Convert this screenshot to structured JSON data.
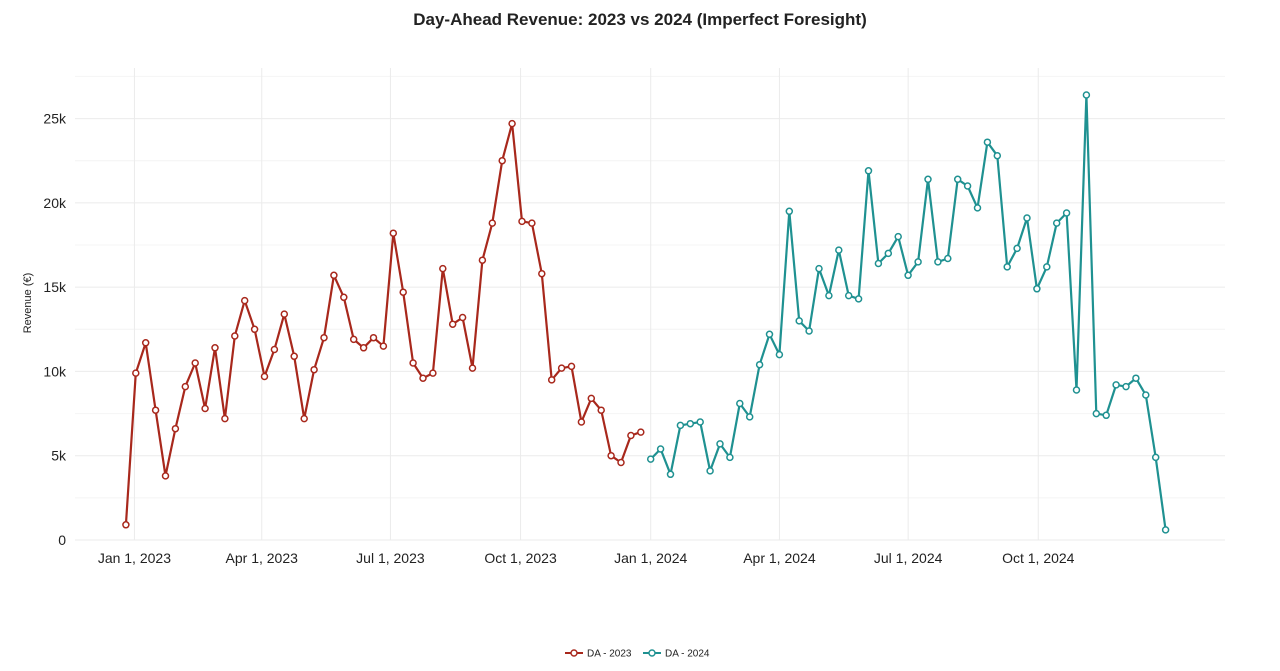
{
  "chart_data": {
    "type": "line",
    "title": "Day-Ahead Revenue: 2023 vs 2024 (Imperfect Foresight)",
    "ylabel": "Revenue (€)",
    "xlabel": "",
    "ylim": [
      0,
      28000
    ],
    "y_ticks": [
      {
        "value": 0,
        "label": "0"
      },
      {
        "value": 5000,
        "label": "5k"
      },
      {
        "value": 10000,
        "label": "10k"
      },
      {
        "value": 15000,
        "label": "15k"
      },
      {
        "value": 20000,
        "label": "20k"
      },
      {
        "value": 25000,
        "label": "25k"
      }
    ],
    "xlim": [
      "2022-11-20",
      "2025-02-10"
    ],
    "x_ticks": [
      {
        "value": "2023-01-01",
        "label": "Jan 1, 2023"
      },
      {
        "value": "2023-04-01",
        "label": "Apr 1, 2023"
      },
      {
        "value": "2023-07-01",
        "label": "Jul 1, 2023"
      },
      {
        "value": "2023-10-01",
        "label": "Oct 1, 2023"
      },
      {
        "value": "2024-01-01",
        "label": "Jan 1, 2024"
      },
      {
        "value": "2024-04-01",
        "label": "Apr 1, 2024"
      },
      {
        "value": "2024-07-01",
        "label": "Jul 1, 2024"
      },
      {
        "value": "2024-10-01",
        "label": "Oct 1, 2024"
      }
    ],
    "grid": true,
    "legend": "bottom-center",
    "series": [
      {
        "name": "DA - 2023",
        "color": "#a8281c",
        "x": [
          "2022-12-26",
          "2023-01-02",
          "2023-01-09",
          "2023-01-16",
          "2023-01-23",
          "2023-01-30",
          "2023-02-06",
          "2023-02-13",
          "2023-02-20",
          "2023-02-27",
          "2023-03-06",
          "2023-03-13",
          "2023-03-20",
          "2023-03-27",
          "2023-04-03",
          "2023-04-10",
          "2023-04-17",
          "2023-04-24",
          "2023-05-01",
          "2023-05-08",
          "2023-05-15",
          "2023-05-22",
          "2023-05-29",
          "2023-06-05",
          "2023-06-12",
          "2023-06-19",
          "2023-06-26",
          "2023-07-03",
          "2023-07-10",
          "2023-07-17",
          "2023-07-24",
          "2023-07-31",
          "2023-08-07",
          "2023-08-14",
          "2023-08-21",
          "2023-08-28",
          "2023-09-04",
          "2023-09-11",
          "2023-09-18",
          "2023-09-25",
          "2023-10-02",
          "2023-10-09",
          "2023-10-16",
          "2023-10-23",
          "2023-10-30",
          "2023-11-06",
          "2023-11-13",
          "2023-11-20",
          "2023-11-27",
          "2023-12-04",
          "2023-12-11",
          "2023-12-18",
          "2023-12-25"
        ],
        "values": [
          900,
          9900,
          11700,
          7700,
          3800,
          6600,
          9100,
          10500,
          7800,
          11400,
          7200,
          12100,
          14200,
          12500,
          9700,
          11300,
          13400,
          10900,
          7200,
          10100,
          12000,
          15700,
          14400,
          11900,
          11400,
          12000,
          11500,
          18200,
          14700,
          10500,
          9600,
          9900,
          16100,
          12800,
          13200,
          10200,
          16600,
          18800,
          22500,
          24700,
          18900,
          18800,
          15800,
          9500,
          10200,
          10300,
          7000,
          8400,
          7700,
          5000,
          4600,
          6200,
          6400
        ]
      },
      {
        "name": "DA - 2024",
        "color": "#1f9191",
        "x": [
          "2024-01-01",
          "2024-01-08",
          "2024-01-15",
          "2024-01-22",
          "2024-01-29",
          "2024-02-05",
          "2024-02-12",
          "2024-02-19",
          "2024-02-26",
          "2024-03-04",
          "2024-03-11",
          "2024-03-18",
          "2024-03-25",
          "2024-04-01",
          "2024-04-08",
          "2024-04-15",
          "2024-04-22",
          "2024-04-29",
          "2024-05-06",
          "2024-05-13",
          "2024-05-20",
          "2024-05-27",
          "2024-06-03",
          "2024-06-10",
          "2024-06-17",
          "2024-06-24",
          "2024-07-01",
          "2024-07-08",
          "2024-07-15",
          "2024-07-22",
          "2024-07-29",
          "2024-08-05",
          "2024-08-12",
          "2024-08-19",
          "2024-08-26",
          "2024-09-02",
          "2024-09-09",
          "2024-09-16",
          "2024-09-23",
          "2024-09-30",
          "2024-10-07",
          "2024-10-14",
          "2024-10-21",
          "2024-10-28",
          "2024-11-04",
          "2024-11-11",
          "2024-11-18",
          "2024-11-25",
          "2024-12-02",
          "2024-12-09",
          "2024-12-16",
          "2024-12-23",
          "2024-12-30"
        ],
        "values": [
          4800,
          5400,
          3900,
          6800,
          6900,
          7000,
          4100,
          5700,
          4900,
          8100,
          7300,
          10400,
          12200,
          11000,
          19500,
          13000,
          12400,
          16100,
          14500,
          17200,
          14500,
          14300,
          21900,
          16400,
          17000,
          18000,
          15700,
          16500,
          21400,
          16500,
          16700,
          21400,
          21000,
          19700,
          23600,
          22800,
          16200,
          17300,
          19100,
          14900,
          16200,
          18800,
          19400,
          8900,
          26400,
          7500,
          7400,
          9200,
          9100,
          9600,
          8600,
          4900,
          600
        ]
      }
    ]
  }
}
